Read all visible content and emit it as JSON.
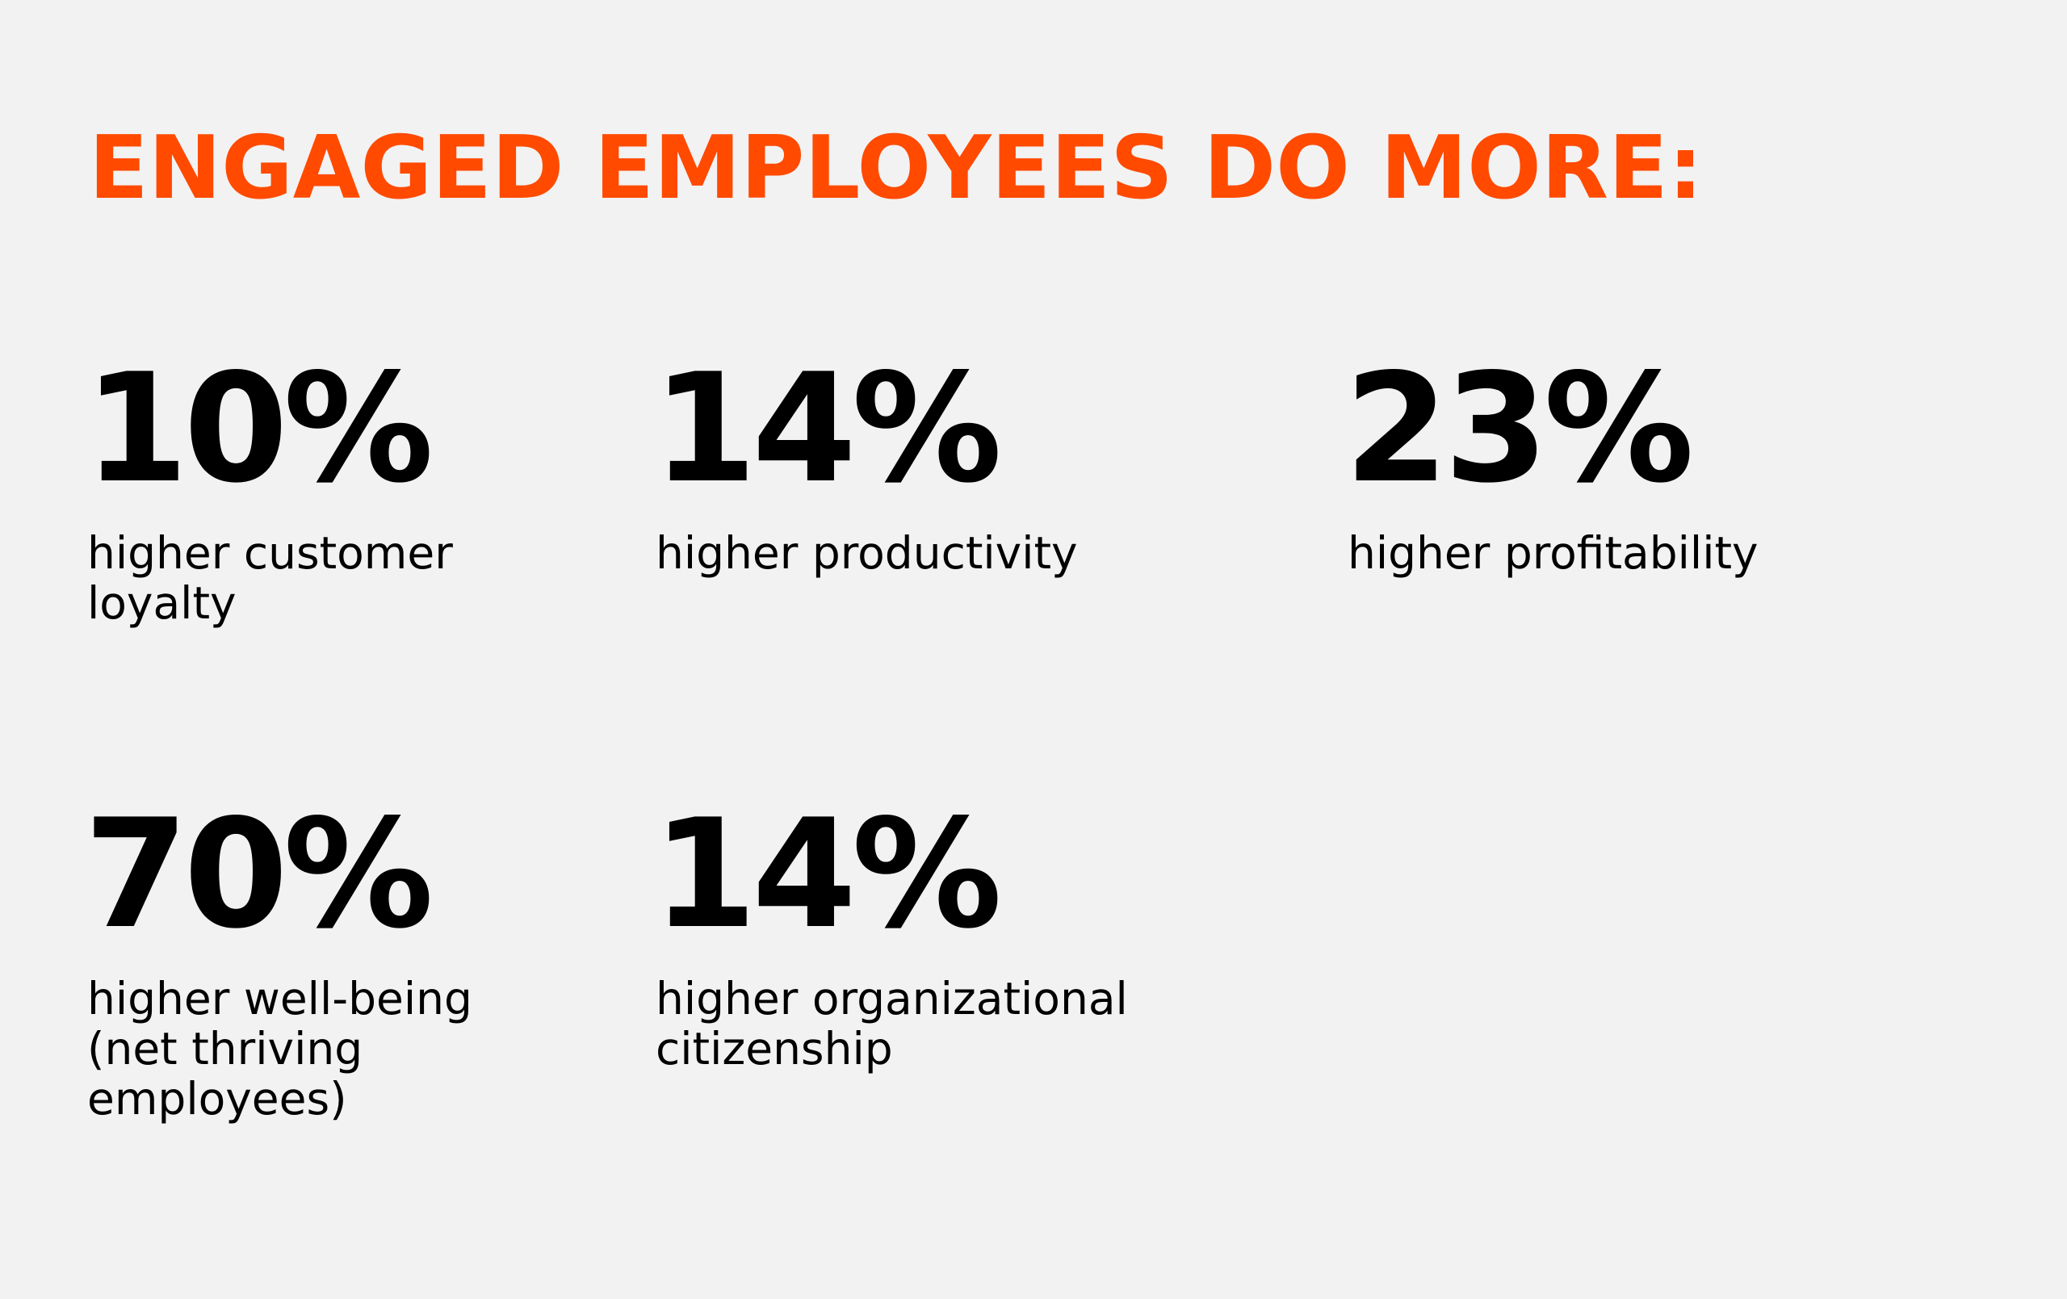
{
  "heading": "ENGAGED EMPLOYEES DO MORE:",
  "accent_color": "#ff4a00",
  "stats": [
    {
      "value": "10%",
      "label": "higher customer loyalty"
    },
    {
      "value": "14%",
      "label": "higher productivity"
    },
    {
      "value": "23%",
      "label": "higher profitability"
    },
    {
      "value": "70%",
      "label": "higher well-being (net thriving employees)"
    },
    {
      "value": "14%",
      "label": "higher organizational citizenship"
    }
  ]
}
